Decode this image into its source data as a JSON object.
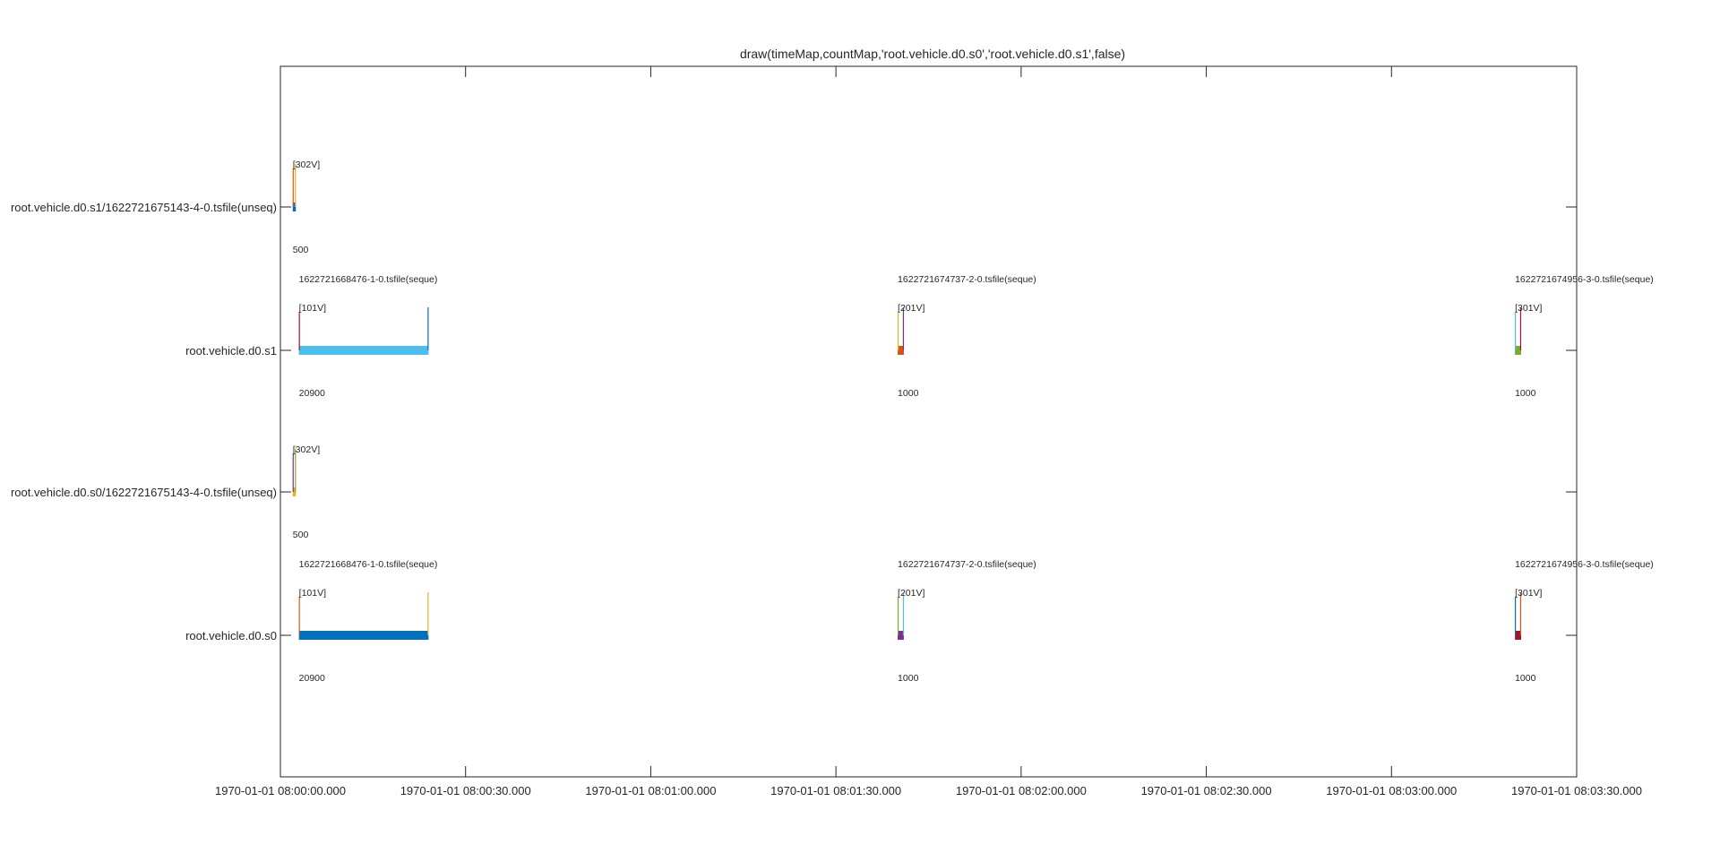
{
  "chart_data": {
    "type": "timeline",
    "title": "draw(timeMap,countMap,'root.vehicle.d0.s0','root.vehicle.d0.s1',false)",
    "xlabel": "",
    "ylabel": "",
    "x_range": [
      "1970-01-01 08:00:00.000",
      "1970-01-01 08:03:30.000"
    ],
    "x_ticks": [
      "1970-01-01 08:00:00.000",
      "1970-01-01 08:00:30.000",
      "1970-01-01 08:01:00.000",
      "1970-01-01 08:01:30.000",
      "1970-01-01 08:02:00.000",
      "1970-01-01 08:02:30.000",
      "1970-01-01 08:03:00.000",
      "1970-01-01 08:03:30.000"
    ],
    "rows": [
      "root.vehicle.d0.s0",
      "root.vehicle.d0.s0/1622721675143-4-0.tsfile(unseq)",
      "root.vehicle.d0.s1",
      "root.vehicle.d0.s1/1622721675143-4-0.tsfile(unseq)"
    ],
    "grid": false,
    "legend": "none",
    "chunks": [
      {
        "row": 0,
        "file": "1622721668476-1-0.tsfile(seque)",
        "version": "[101V]",
        "count": "20900",
        "start": "1970-01-01 08:00:03.000",
        "end": "1970-01-01 08:00:24.000",
        "color": "#0072BD",
        "v1": "#D95319",
        "v2": "#EDB120"
      },
      {
        "row": 0,
        "file": "1622721674737-2-0.tsfile(seque)",
        "version": "[201V]",
        "count": "1000",
        "start": "1970-01-01 08:01:40.000",
        "end": "1970-01-01 08:01:41.000",
        "color": "#7E2F8E",
        "v1": "#77AC30",
        "v2": "#4DBEEE"
      },
      {
        "row": 0,
        "file": "1622721674956-3-0.tsfile(seque)",
        "version": "[301V]",
        "count": "1000",
        "start": "1970-01-01 08:03:20.000",
        "end": "1970-01-01 08:03:21.000",
        "color": "#A2142F",
        "v1": "#0072BD",
        "v2": "#D95319"
      },
      {
        "row": 1,
        "file": "",
        "version": "[302V]",
        "count": "500",
        "start": "1970-01-01 08:00:02.000",
        "end": "1970-01-01 08:00:02.500",
        "color": "#EDB120",
        "v1": "#7E2F8E",
        "v2": "#77AC30"
      },
      {
        "row": 2,
        "file": "1622721668476-1-0.tsfile(seque)",
        "version": "[101V]",
        "count": "20900",
        "start": "1970-01-01 08:00:03.000",
        "end": "1970-01-01 08:00:24.000",
        "color": "#4DBEEE",
        "v1": "#A2142F",
        "v2": "#0072BD"
      },
      {
        "row": 2,
        "file": "1622721674737-2-0.tsfile(seque)",
        "version": "[201V]",
        "count": "1000",
        "start": "1970-01-01 08:01:40.000",
        "end": "1970-01-01 08:01:41.000",
        "color": "#D95319",
        "v1": "#EDB120",
        "v2": "#7E2F8E"
      },
      {
        "row": 2,
        "file": "1622721674956-3-0.tsfile(seque)",
        "version": "[301V]",
        "count": "1000",
        "start": "1970-01-01 08:03:20.000",
        "end": "1970-01-01 08:03:21.000",
        "color": "#77AC30",
        "v1": "#4DBEEE",
        "v2": "#A2142F"
      },
      {
        "row": 3,
        "file": "",
        "version": "[302V]",
        "count": "500",
        "start": "1970-01-01 08:00:02.000",
        "end": "1970-01-01 08:00:02.500",
        "color": "#0072BD",
        "v1": "#D95319",
        "v2": "#EDB120"
      }
    ]
  }
}
